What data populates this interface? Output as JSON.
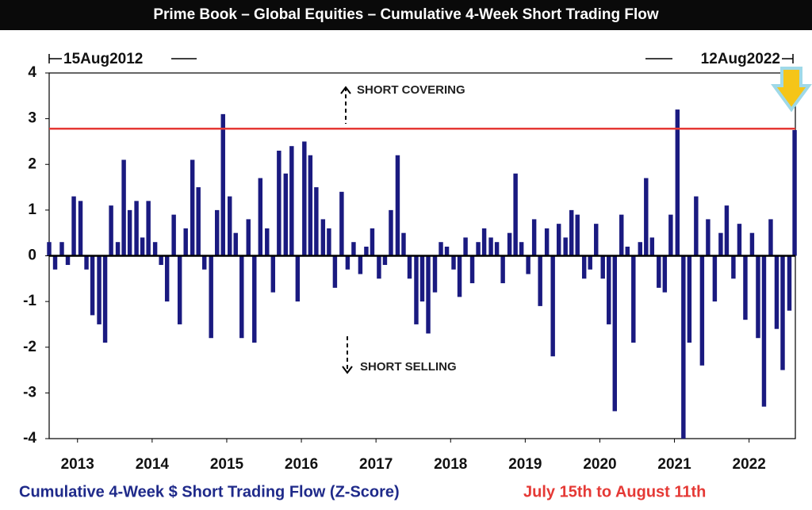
{
  "chart_data": {
    "type": "bar",
    "title": "Prime Book – Global Equities – Cumulative 4-Week Short Trading Flow",
    "annotations": {
      "start": "15Aug2012",
      "end": "12Aug2022",
      "up": "SHORT COVERING",
      "down": "SHORT SELLING"
    },
    "legend": [
      {
        "label": "Cumulative 4-Week $ Short Trading Flow (Z-Score)",
        "color": "#1f2a8a"
      },
      {
        "label": "July 15th to August 11th",
        "color": "#e53935"
      }
    ],
    "reference_line": {
      "value": 2.78,
      "color": "#e53935"
    },
    "color": "#1a1a80",
    "xlim": [
      2012.62,
      2022.62
    ],
    "xticks": [
      2013,
      2014,
      2015,
      2016,
      2017,
      2018,
      2019,
      2020,
      2021,
      2022
    ],
    "ylim": [
      -4,
      4
    ],
    "yticks": [
      -4,
      -3,
      -2,
      -1,
      0,
      1,
      2,
      3,
      4
    ],
    "x": [
      2012.62,
      2012.7,
      2012.79,
      2012.87,
      2012.95,
      2013.04,
      2013.12,
      2013.2,
      2013.29,
      2013.37,
      2013.45,
      2013.54,
      2013.62,
      2013.7,
      2013.79,
      2013.87,
      2013.95,
      2014.04,
      2014.12,
      2014.2,
      2014.29,
      2014.37,
      2014.45,
      2014.54,
      2014.62,
      2014.7,
      2014.79,
      2014.87,
      2014.95,
      2015.04,
      2015.12,
      2015.2,
      2015.29,
      2015.37,
      2015.45,
      2015.54,
      2015.62,
      2015.7,
      2015.79,
      2015.87,
      2015.95,
      2016.04,
      2016.12,
      2016.2,
      2016.29,
      2016.37,
      2016.45,
      2016.54,
      2016.62,
      2016.7,
      2016.79,
      2016.87,
      2016.95,
      2017.04,
      2017.12,
      2017.2,
      2017.29,
      2017.37,
      2017.45,
      2017.54,
      2017.62,
      2017.7,
      2017.79,
      2017.87,
      2017.95,
      2018.04,
      2018.12,
      2018.2,
      2018.29,
      2018.37,
      2018.45,
      2018.54,
      2018.62,
      2018.7,
      2018.79,
      2018.87,
      2018.95,
      2019.04,
      2019.12,
      2019.2,
      2019.29,
      2019.37,
      2019.45,
      2019.54,
      2019.62,
      2019.7,
      2019.79,
      2019.87,
      2019.95,
      2020.04,
      2020.12,
      2020.2,
      2020.29,
      2020.37,
      2020.45,
      2020.54,
      2020.62,
      2020.7,
      2020.79,
      2020.87,
      2020.95,
      2021.04,
      2021.12,
      2021.2,
      2021.29,
      2021.37,
      2021.45,
      2021.54,
      2021.62,
      2021.7,
      2021.79,
      2021.87,
      2021.95,
      2022.04,
      2022.12,
      2022.2,
      2022.29,
      2022.37,
      2022.45,
      2022.54,
      2022.61
    ],
    "values": [
      0.3,
      -0.3,
      0.3,
      -0.2,
      1.3,
      1.2,
      -0.3,
      -1.3,
      -1.5,
      -1.9,
      1.1,
      0.3,
      2.1,
      1.0,
      1.2,
      0.4,
      1.2,
      0.3,
      -0.2,
      -1.0,
      0.9,
      -1.5,
      0.6,
      2.1,
      1.5,
      -0.3,
      -1.8,
      1.0,
      3.1,
      1.3,
      0.5,
      -1.8,
      0.8,
      -1.9,
      1.7,
      0.6,
      -0.8,
      2.3,
      1.8,
      2.4,
      -1.0,
      2.5,
      2.2,
      1.5,
      0.8,
      0.6,
      -0.7,
      1.4,
      -0.3,
      0.3,
      -0.4,
      0.2,
      0.6,
      -0.5,
      -0.2,
      1.0,
      2.2,
      0.5,
      -0.5,
      -1.5,
      -1.0,
      -1.7,
      -0.8,
      0.3,
      0.2,
      -0.3,
      -0.9,
      0.4,
      -0.6,
      0.3,
      0.6,
      0.4,
      0.3,
      -0.6,
      0.5,
      1.8,
      0.3,
      -0.4,
      0.8,
      -1.1,
      0.6,
      -2.2,
      0.7,
      0.4,
      1.0,
      0.9,
      -0.5,
      -0.3,
      0.7,
      -0.5,
      -1.5,
      -3.4,
      0.9,
      0.2,
      -1.9,
      0.3,
      1.7,
      0.4,
      -0.7,
      -0.8,
      0.9,
      3.2,
      -4.0,
      -1.9,
      1.3,
      -2.4,
      0.8,
      -1.0,
      0.5,
      1.1,
      -0.5,
      0.7,
      -1.4,
      0.5,
      -1.8,
      -3.3,
      0.8,
      -1.6,
      -2.5,
      -1.2,
      2.75
    ]
  }
}
